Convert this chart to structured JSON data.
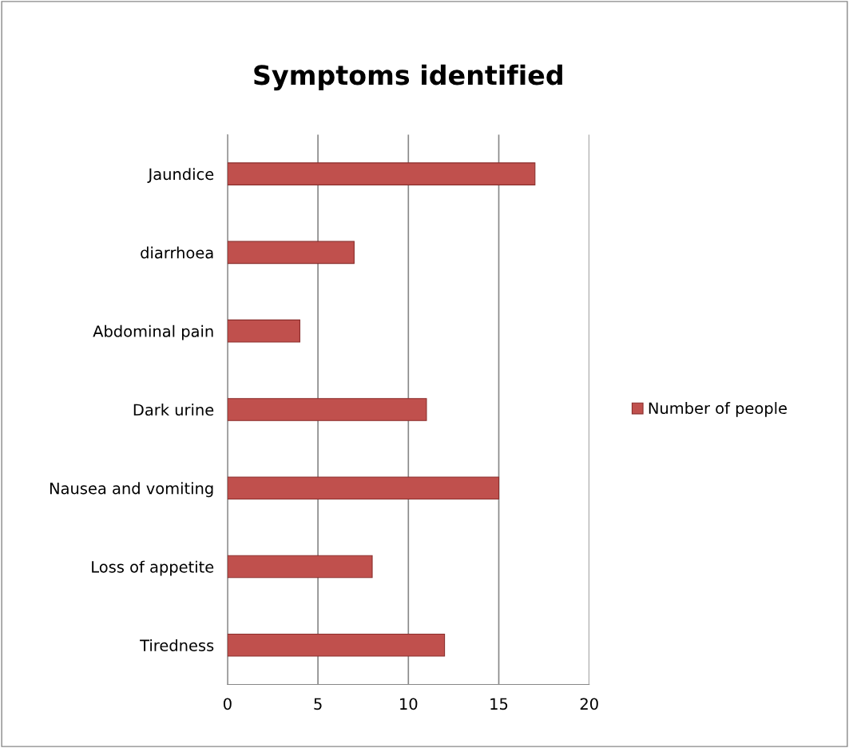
{
  "chart_data": {
    "type": "bar",
    "orientation": "horizontal",
    "title": "Symptoms identified",
    "categories": [
      "Jaundice",
      "diarrhoea",
      "Abdominal pain",
      "Dark urine",
      "Nausea and vomiting",
      "Loss of appetite",
      "Tiredness"
    ],
    "series": [
      {
        "name": "Number of people",
        "color": "#c0504d",
        "values": [
          17,
          7,
          4,
          11,
          15,
          8,
          12
        ]
      }
    ],
    "xlim": [
      0,
      20
    ],
    "xticks": [
      0,
      5,
      10,
      15,
      20
    ],
    "grid": "x",
    "legend": "right"
  }
}
